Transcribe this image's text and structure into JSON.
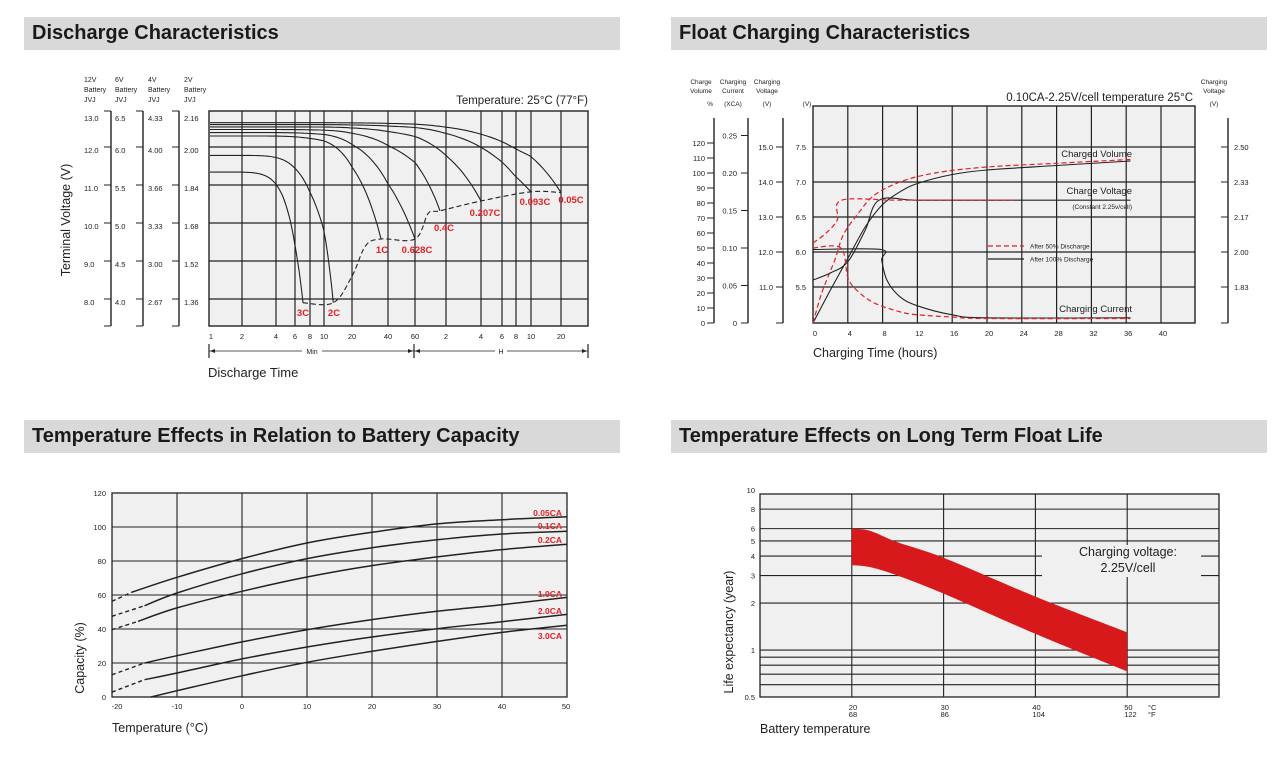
{
  "chart_data": [
    {
      "type": "line",
      "title": "Discharge Characteristics",
      "annotation": "Temperature: 25°C (77°F)",
      "xlabel": "Discharge Time",
      "ylabel": "Terminal Voltage (V)",
      "x_scale": "log",
      "x_unit_labels": {
        "min": "Min",
        "h": "H"
      },
      "x_ticks": [
        {
          "label": "1",
          "minutes": 1
        },
        {
          "label": "2",
          "minutes": 2
        },
        {
          "label": "4",
          "minutes": 4
        },
        {
          "label": "6",
          "minutes": 6
        },
        {
          "label": "8",
          "minutes": 8
        },
        {
          "label": "10",
          "minutes": 10
        },
        {
          "label": "20",
          "minutes": 20
        },
        {
          "label": "40",
          "minutes": 40
        },
        {
          "label": "60",
          "minutes": 60
        },
        {
          "label": "2",
          "minutes": 120
        },
        {
          "label": "4",
          "minutes": 240
        },
        {
          "label": "6",
          "minutes": 360
        },
        {
          "label": "8",
          "minutes": 480
        },
        {
          "label": "10",
          "minutes": 600
        },
        {
          "label": "20",
          "minutes": 1200
        }
      ],
      "y_axes": [
        {
          "header": [
            "12V",
            "Battery",
            "JVJ"
          ],
          "ticks": [
            "13.0",
            "12.0",
            "11.0",
            "10.0",
            "9.0",
            "8.0"
          ]
        },
        {
          "header": [
            "6V",
            "Battery",
            "JVJ"
          ],
          "ticks": [
            "6.5",
            "6.0",
            "5.5",
            "5.0",
            "4.5",
            "4.0"
          ]
        },
        {
          "header": [
            "4V",
            "Battery",
            "JVJ"
          ],
          "ticks": [
            "4.33",
            "4.00",
            "3.66",
            "3.33",
            "3.00",
            "2.67"
          ]
        },
        {
          "header": [
            "2V",
            "Battery",
            "JVJ"
          ],
          "ticks": [
            "2.16",
            "2.00",
            "1.84",
            "1.68",
            "1.52",
            "1.36"
          ]
        }
      ],
      "y_unit": "12V battery volts",
      "series": [
        {
          "name": "3C",
          "start_v": 11.34,
          "end_time_min": 7,
          "end_v": 7.9
        },
        {
          "name": "2C",
          "start_v": 11.78,
          "end_time_min": 12.6,
          "end_v": 7.9
        },
        {
          "name": "1C",
          "start_v": 12.29,
          "end_time_min": 35,
          "end_v": 9.58
        },
        {
          "name": "0.628C",
          "start_v": 12.38,
          "end_time_min": 60,
          "end_v": 9.58
        },
        {
          "name": "0.4C",
          "start_v": 12.46,
          "end_time_min": 105,
          "end_v": 10.32
        },
        {
          "name": "0.207C",
          "start_v": 12.53,
          "end_time_min": 240,
          "end_v": 10.58
        },
        {
          "name": "0.093C",
          "start_v": 12.59,
          "end_time_min": 600,
          "end_v": 10.82
        },
        {
          "name": "0.05C",
          "start_v": 12.64,
          "end_time_min": 1200,
          "end_v": 10.8
        }
      ],
      "cutoff_curve": [
        [
          7,
          7.9
        ],
        [
          12.6,
          7.9
        ],
        [
          20,
          8.6
        ],
        [
          26,
          9.4
        ],
        [
          35,
          9.58
        ],
        [
          60,
          9.58
        ],
        [
          81,
          10.26
        ],
        [
          105,
          10.32
        ],
        [
          240,
          10.58
        ],
        [
          600,
          10.82
        ],
        [
          1200,
          10.8
        ]
      ],
      "grid": true,
      "colors": {
        "label": "#e31e24",
        "curve": "#222222",
        "plot_bg": "#f0f0f0"
      }
    },
    {
      "type": "line",
      "title": "Float Charging Characteristics",
      "annotation": "0.10CA-2.25V/cell  temperature 25°C",
      "xlabel": "Charging Time (hours)",
      "x_ticks": [
        0,
        4,
        8,
        12,
        16,
        20,
        24,
        28,
        32,
        36,
        40
      ],
      "xlim": [
        0,
        44
      ],
      "axes": {
        "volume": {
          "header": [
            "Charge",
            "Volume",
            "%"
          ],
          "ticks": [
            0,
            10,
            20,
            30,
            40,
            50,
            60,
            70,
            80,
            90,
            100,
            110,
            120
          ]
        },
        "current": {
          "header": [
            "Charging",
            "Current",
            "(XCA)"
          ],
          "ticks": [
            "0",
            "0.05",
            "0.10",
            "0.15",
            "0.20",
            "0.25"
          ]
        },
        "voltage12": {
          "header": [
            "Charging",
            "Voltage",
            "(V)"
          ],
          "ticks": [
            "11.0",
            "12.0",
            "13.0",
            "14.0",
            "15.0"
          ]
        },
        "voltage6": {
          "header": [
            "(V)"
          ],
          "ticks": [
            "5.5",
            "6.0",
            "6.5",
            "7.0",
            "7.5"
          ]
        },
        "cell": {
          "header": [
            "Charging",
            "Voltage",
            "(V)"
          ],
          "ticks": [
            "1.83",
            "2.00",
            "2.17",
            "2.33",
            "2.50"
          ]
        }
      },
      "series": [
        {
          "curve": "Charged Volume",
          "condition": "After 100% Discharge",
          "axis": "volume",
          "style": "solid",
          "points": [
            [
              0,
              0
            ],
            [
              2,
              22
            ],
            [
              4,
              43
            ],
            [
              6,
              64
            ],
            [
              8,
              79
            ],
            [
              10,
              87.5
            ],
            [
              12,
              93
            ],
            [
              16,
              99
            ],
            [
              20,
              102
            ],
            [
              28,
              105
            ],
            [
              36.5,
              108
            ]
          ]
        },
        {
          "curve": "Charged Volume",
          "condition": "After 50% Discharge",
          "axis": "volume",
          "style": "dashed",
          "points": [
            [
              0,
              0
            ],
            [
              1,
              20
            ],
            [
              2.5,
              42
            ],
            [
              3.5,
              59
            ],
            [
              5.2,
              73
            ],
            [
              7,
              85
            ],
            [
              10,
              94
            ],
            [
              14,
              100
            ],
            [
              20,
              104
            ],
            [
              28,
              106.5
            ],
            [
              36.5,
              109
            ]
          ]
        },
        {
          "curve": "Charge Voltage",
          "condition": "After 100% Discharge",
          "axis": "voltage6",
          "style": "solid",
          "points": [
            [
              0,
              5.6
            ],
            [
              2,
              5.7
            ],
            [
              4,
              5.86
            ],
            [
              6,
              6.31
            ],
            [
              7.6,
              6.74
            ],
            [
              12,
              6.74
            ],
            [
              20,
              6.74
            ],
            [
              36.5,
              6.74
            ]
          ]
        },
        {
          "curve": "Charge Voltage",
          "condition": "After 50% Discharge",
          "axis": "voltage6",
          "style": "dashed",
          "points": [
            [
              0,
              6.13
            ],
            [
              1.5,
              6.27
            ],
            [
              2.8,
              6.46
            ],
            [
              3.3,
              6.74
            ],
            [
              10,
              6.74
            ],
            [
              23,
              6.74
            ]
          ]
        },
        {
          "curve": "Charging Current",
          "condition": "After 100% Discharge",
          "axis": "current",
          "style": "solid",
          "points": [
            [
              0,
              0.098
            ],
            [
              7.8,
              0.098
            ],
            [
              7.9,
              0.084
            ],
            [
              8.5,
              0.057
            ],
            [
              10,
              0.035
            ],
            [
              12,
              0.023
            ],
            [
              16,
              0.011
            ],
            [
              20,
              0.007
            ],
            [
              36.5,
              0.007
            ]
          ]
        },
        {
          "curve": "Charging Current",
          "condition": "After 50% Discharge",
          "axis": "current",
          "style": "dashed",
          "points": [
            [
              0,
              0.1
            ],
            [
              3.2,
              0.1
            ],
            [
              4,
              0.061
            ],
            [
              5,
              0.044
            ],
            [
              7,
              0.027
            ],
            [
              10,
              0.015
            ],
            [
              12,
              0.011
            ],
            [
              16,
              0.008
            ],
            [
              20,
              0.006
            ],
            [
              36.5,
              0.006
            ]
          ]
        }
      ],
      "curve_labels": {
        "volume": "Charged Volume",
        "voltage": "Charge Voltage",
        "voltage_note": "(Constant 2.25v/cell)",
        "current": "Charging Current"
      },
      "legend": [
        {
          "label": "After  50% Discharge",
          "style": "dashed",
          "color": "#e31e24"
        },
        {
          "label": "After 100% Discharge",
          "style": "solid",
          "color": "#222222"
        }
      ],
      "grid": true
    },
    {
      "type": "line",
      "title": "Temperature Effects in Relation to Battery Capacity",
      "xlabel": "Temperature (°C)",
      "ylabel": "Capacity (%)",
      "x_ticks": [
        -20,
        -10,
        0,
        10,
        20,
        30,
        40,
        50
      ],
      "y_ticks": [
        0,
        20,
        40,
        60,
        80,
        100,
        120
      ],
      "xlim": [
        -20,
        50
      ],
      "ylim": [
        0,
        120
      ],
      "series": [
        {
          "name": "0.05CA",
          "dashed_points": [
            [
              -20,
              56.3
            ],
            [
              -17,
              61.6
            ]
          ],
          "points": [
            [
              -17,
              61.6
            ],
            [
              -10,
              70.4
            ],
            [
              0,
              81.4
            ],
            [
              10,
              90.6
            ],
            [
              20,
              96.9
            ],
            [
              30,
              101.8
            ],
            [
              40,
              104.3
            ],
            [
              50,
              106
            ]
          ]
        },
        {
          "name": "0.1CA",
          "dashed_points": [
            [
              -20,
              47.5
            ],
            [
              -15,
              53.7
            ]
          ],
          "points": [
            [
              -15,
              53.7
            ],
            [
              -10,
              61.2
            ],
            [
              0,
              72.5
            ],
            [
              10,
              81.4
            ],
            [
              20,
              87.8
            ],
            [
              30,
              92.5
            ],
            [
              40,
              95.9
            ],
            [
              50,
              97.5
            ]
          ]
        },
        {
          "name": "0.2CA",
          "dashed_points": [
            [
              -20,
              39.6
            ],
            [
              -16,
              44.5
            ]
          ],
          "points": [
            [
              -16,
              44.5
            ],
            [
              -10,
              52.4
            ],
            [
              0,
              62.2
            ],
            [
              10,
              70.6
            ],
            [
              20,
              77.3
            ],
            [
              30,
              82.4
            ],
            [
              40,
              86.7
            ],
            [
              50,
              89.8
            ]
          ]
        },
        {
          "name": "1.0CA",
          "dashed_points": [
            [
              -20,
              13.1
            ],
            [
              -15,
              20
            ]
          ],
          "points": [
            [
              -15,
              20
            ],
            [
              -10,
              24.3
            ],
            [
              0,
              32.4
            ],
            [
              10,
              39.6
            ],
            [
              20,
              45.5
            ],
            [
              30,
              50.4
            ],
            [
              40,
              54.3
            ],
            [
              50,
              58.6
            ]
          ]
        },
        {
          "name": "2.0CA",
          "dashed_points": [
            [
              -20,
              2.9
            ],
            [
              -15,
              10.2
            ]
          ],
          "points": [
            [
              -15,
              10.2
            ],
            [
              -10,
              14.1
            ],
            [
              0,
              22.4
            ],
            [
              10,
              29.4
            ],
            [
              20,
              35.3
            ],
            [
              30,
              40.2
            ],
            [
              40,
              44.3
            ],
            [
              50,
              48.6
            ]
          ]
        },
        {
          "name": "3.0CA",
          "dashed_points": [],
          "points": [
            [
              -14,
              0
            ],
            [
              -10,
              3.7
            ],
            [
              0,
              12.5
            ],
            [
              10,
              20.4
            ],
            [
              20,
              26.9
            ],
            [
              30,
              32.7
            ],
            [
              40,
              38
            ],
            [
              50,
              42.2
            ]
          ]
        }
      ],
      "grid": true,
      "colors": {
        "label": "#e31e24"
      }
    },
    {
      "type": "area",
      "title": "Temperature Effects on Long Term Float Life",
      "xlabel": "Battery temperature",
      "ylabel": "Life expectancy (year)",
      "y_scale": "log",
      "ylim": [
        0.5,
        10
      ],
      "xlim": [
        10,
        60
      ],
      "y_ticks": [
        "10",
        "8",
        "6",
        "5",
        "4",
        "3",
        "2",
        "1",
        "0.5"
      ],
      "y_gridlines": [
        8,
        6,
        5,
        4,
        3,
        2,
        1,
        0.9,
        0.8,
        0.7,
        0.6
      ],
      "x_ticks": [
        {
          "c": "20",
          "f": "68"
        },
        {
          "c": "30",
          "f": "86"
        },
        {
          "c": "40",
          "f": "104"
        },
        {
          "c": "50",
          "f": "122"
        }
      ],
      "x_units": {
        "c": "°C",
        "f": "°F"
      },
      "band": {
        "x": [
          20,
          22,
          25,
          30,
          40,
          50
        ],
        "upper": [
          6.0,
          5.8,
          4.9,
          3.9,
          2.2,
          1.3
        ],
        "lower": [
          3.5,
          3.4,
          3.0,
          2.3,
          1.27,
          0.73
        ]
      },
      "annotation": [
        "Charging voltage:",
        "2.25V/cell"
      ],
      "grid": true,
      "colors": {
        "band": "#d7191c"
      }
    }
  ]
}
